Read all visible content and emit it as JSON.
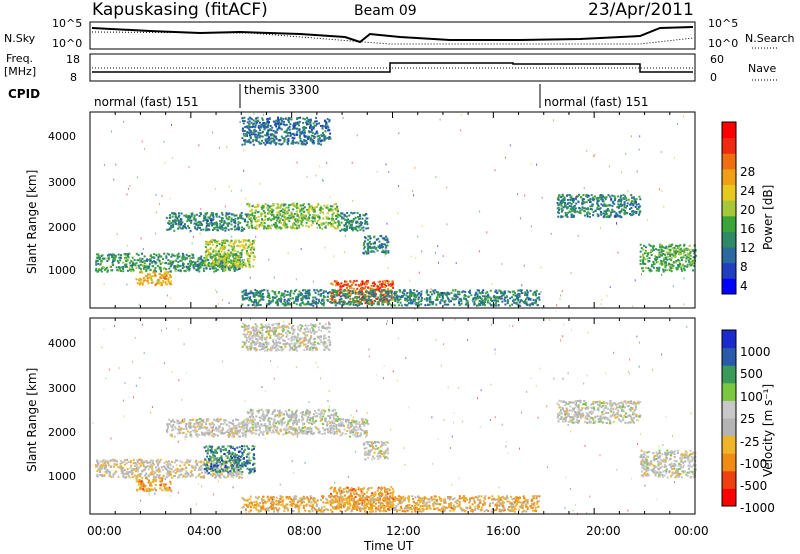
{
  "header": {
    "station": "Kapuskasing (fitACF)",
    "beam": "Beam 09",
    "date": "23/Apr/2011"
  },
  "panel_labels": {
    "nsky": "N.Sky",
    "nsearch": "N.Search",
    "freq": "Freq.",
    "freq_unit": "[MHz]",
    "nave": "Nave",
    "cpid": "CPID",
    "nsky_ticks": [
      "10^5",
      "10^0"
    ],
    "nsearch_ticks": [
      "10^5",
      "10^0"
    ],
    "freq_ticks": [
      "18",
      "8"
    ],
    "nave_ticks": [
      "60",
      "0"
    ]
  },
  "cpid_segments": [
    {
      "label": "normal (fast) 151",
      "start": 0.0,
      "end": 6.0
    },
    {
      "label": "themis 3300",
      "start": 6.0,
      "end": 18.0
    },
    {
      "label": "normal (fast) 151",
      "start": 18.0,
      "end": 24.0
    }
  ],
  "axes": {
    "ylabel": "Slant Range [km]",
    "xlabel": "Time UT",
    "x_ticks": [
      "00:00",
      "04:00",
      "08:00",
      "12:00",
      "16:00",
      "20:00",
      "00:00"
    ],
    "y_ticks": [
      "1000",
      "2000",
      "3000",
      "4000"
    ]
  },
  "chart_data": [
    {
      "type": "heatmap",
      "name": "Power",
      "xlim": [
        0,
        24
      ],
      "ylim": [
        180,
        4500
      ],
      "colorbar": {
        "label": "Power [dB]",
        "ticks": [
          "28",
          "24",
          "20",
          "16",
          "12",
          "8",
          "4"
        ],
        "colors": [
          "#0000ff",
          "#1f3fbf",
          "#2b6a9e",
          "#2e8a66",
          "#3aa63a",
          "#a6c73a",
          "#e6c81e",
          "#f0a014",
          "#ee6e10",
          "#ee2a10",
          "#ff0000"
        ]
      },
      "regions": [
        {
          "t0": 0.2,
          "t1": 6.0,
          "r0": 1000,
          "r1": 1400,
          "level": 0.35
        },
        {
          "t0": 1.8,
          "t1": 3.2,
          "r0": 700,
          "r1": 1000,
          "level": 0.65
        },
        {
          "t0": 3.0,
          "t1": 6.2,
          "r0": 1900,
          "r1": 2300,
          "level": 0.3
        },
        {
          "t0": 4.5,
          "t1": 6.5,
          "r0": 1100,
          "r1": 1700,
          "level": 0.5
        },
        {
          "t0": 6.2,
          "t1": 9.8,
          "r0": 1950,
          "r1": 2500,
          "level": 0.45
        },
        {
          "t0": 6.0,
          "t1": 9.5,
          "r0": 3800,
          "r1": 4400,
          "level": 0.25
        },
        {
          "t0": 9.8,
          "t1": 11.0,
          "r0": 1900,
          "r1": 2300,
          "level": 0.3
        },
        {
          "t0": 10.8,
          "t1": 11.8,
          "r0": 1400,
          "r1": 1800,
          "level": 0.3
        },
        {
          "t0": 9.5,
          "t1": 12.0,
          "r0": 300,
          "r1": 800,
          "level": 0.8
        },
        {
          "t0": 6.0,
          "t1": 17.8,
          "r0": 250,
          "r1": 600,
          "level": 0.3
        },
        {
          "t0": 18.5,
          "t1": 21.8,
          "r0": 2200,
          "r1": 2700,
          "level": 0.3
        },
        {
          "t0": 21.8,
          "t1": 24.0,
          "r0": 1000,
          "r1": 1600,
          "level": 0.4
        }
      ]
    },
    {
      "type": "heatmap",
      "name": "Velocity",
      "xlim": [
        0,
        24
      ],
      "ylim": [
        180,
        4500
      ],
      "colorbar": {
        "label": "Velocity [m s⁻¹]",
        "ticks": [
          "1000",
          "500",
          "100",
          "25",
          "-25",
          "-100",
          "-500",
          "-1000"
        ],
        "colors": [
          "#ff0000",
          "#ee4010",
          "#f08c14",
          "#f0b428",
          "#b4b4b4",
          "#c8c8c8",
          "#7ac840",
          "#3a9a5a",
          "#2a5aaa",
          "#1a2acc"
        ]
      },
      "regions": [
        {
          "t0": 0.2,
          "t1": 6.0,
          "r0": 1000,
          "r1": 1400,
          "level": 0.45
        },
        {
          "t0": 1.8,
          "t1": 3.2,
          "r0": 700,
          "r1": 1000,
          "level": 0.3
        },
        {
          "t0": 3.0,
          "t1": 6.2,
          "r0": 1900,
          "r1": 2300,
          "level": 0.48
        },
        {
          "t0": 4.5,
          "t1": 6.5,
          "r0": 1100,
          "r1": 1700,
          "level": 0.8
        },
        {
          "t0": 6.2,
          "t1": 9.8,
          "r0": 1950,
          "r1": 2500,
          "level": 0.5
        },
        {
          "t0": 6.0,
          "t1": 9.5,
          "r0": 3800,
          "r1": 4400,
          "level": 0.5
        },
        {
          "t0": 9.8,
          "t1": 11.0,
          "r0": 1900,
          "r1": 2300,
          "level": 0.5
        },
        {
          "t0": 10.8,
          "t1": 11.8,
          "r0": 1400,
          "r1": 1800,
          "level": 0.5
        },
        {
          "t0": 9.5,
          "t1": 12.0,
          "r0": 300,
          "r1": 800,
          "level": 0.3
        },
        {
          "t0": 6.0,
          "t1": 17.8,
          "r0": 250,
          "r1": 600,
          "level": 0.35
        },
        {
          "t0": 18.5,
          "t1": 21.8,
          "r0": 2200,
          "r1": 2700,
          "level": 0.5
        },
        {
          "t0": 21.8,
          "t1": 24.0,
          "r0": 1000,
          "r1": 1600,
          "level": 0.5
        }
      ]
    }
  ]
}
